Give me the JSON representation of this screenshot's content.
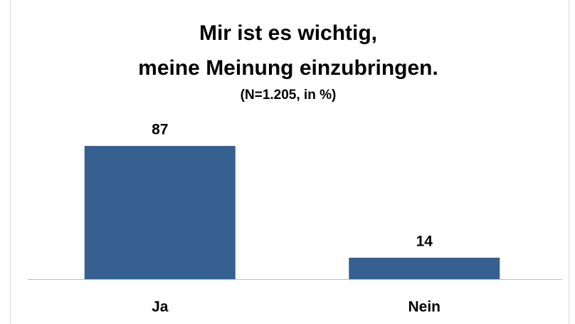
{
  "chart_data": {
    "type": "bar",
    "title": [
      "Mir ist es wichtig,",
      "meine Meinung einzubringen."
    ],
    "subtitle": "(N=1.205, in %)",
    "categories": [
      "Ja",
      "Nein"
    ],
    "values": [
      87,
      14
    ],
    "color": "#36608f",
    "ylim": [
      0,
      100
    ]
  }
}
